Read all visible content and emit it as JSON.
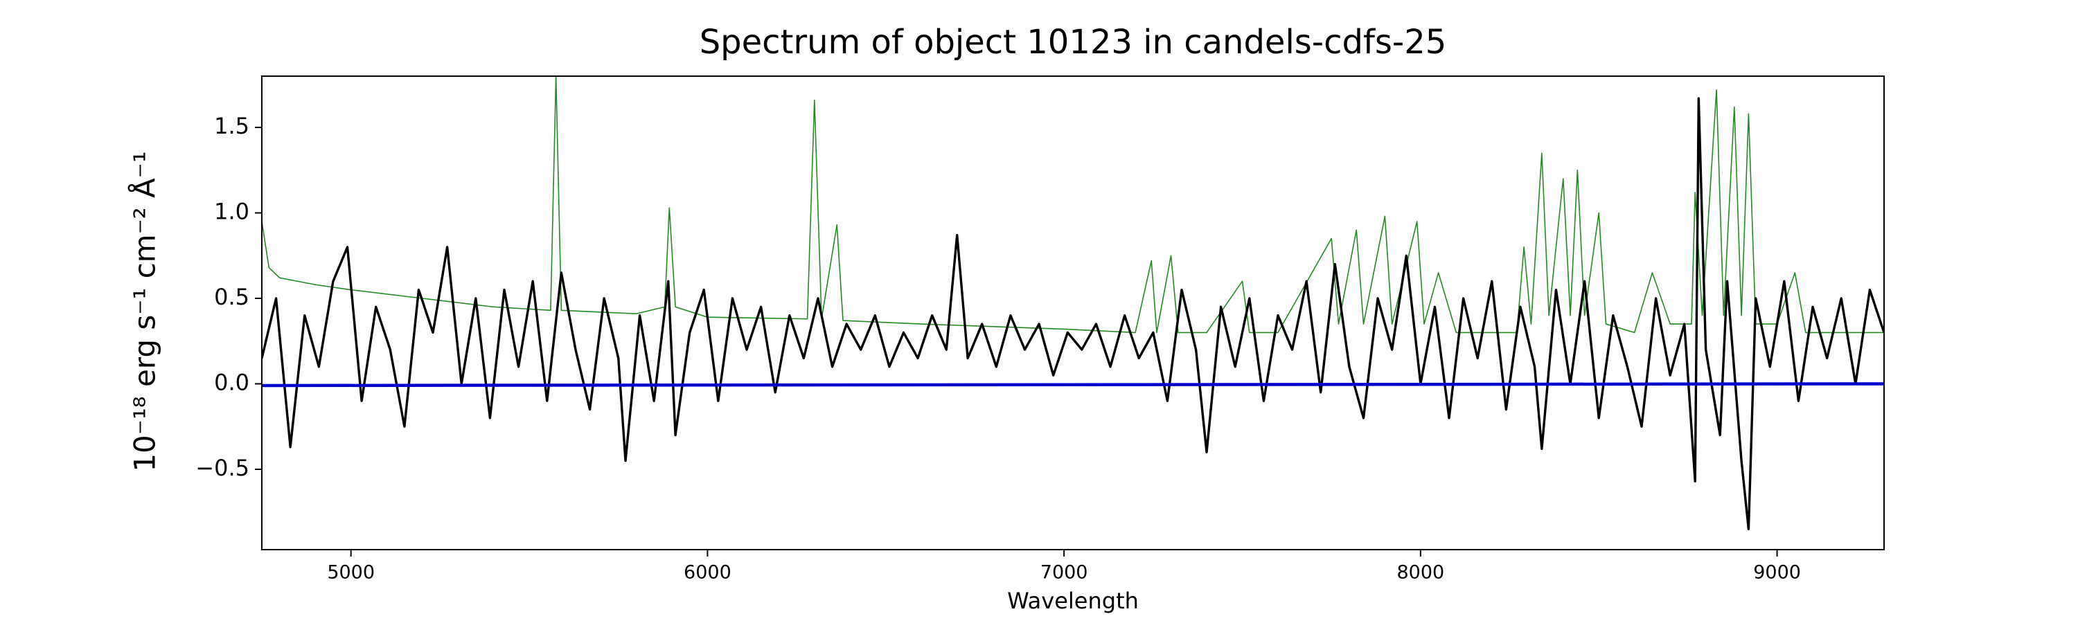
{
  "chart_data": {
    "type": "line",
    "title": "Spectrum of object 10123 in candels-cdfs-25",
    "xlabel": "Wavelength",
    "ylabel": "10⁻¹⁸ erg s⁻¹ cm⁻² Å⁻¹",
    "xlim": [
      4750,
      9300
    ],
    "ylim": [
      -0.97,
      1.8
    ],
    "xticks": [
      5000,
      6000,
      7000,
      8000,
      9000
    ],
    "yticks": [
      {
        "value": -0.5,
        "label": "−0.5"
      },
      {
        "value": 0,
        "label": "0.0"
      },
      {
        "value": 0.5,
        "label": "0.5"
      },
      {
        "value": 1,
        "label": "1.0"
      },
      {
        "value": 1.5,
        "label": "1.5"
      }
    ],
    "series": [
      {
        "color": "#228b22",
        "width": 1.6,
        "x": [
          4750,
          4770,
          4800,
          4900,
          5000,
          5200,
          5400,
          5560,
          5575,
          5590,
          5800,
          5880,
          5893,
          5910,
          6000,
          6280,
          6300,
          6320,
          6363,
          6380,
          6600,
          7000,
          7200,
          7245,
          7260,
          7300,
          7320,
          7400,
          7500,
          7520,
          7600,
          7750,
          7770,
          7820,
          7840,
          7900,
          7920,
          7990,
          8010,
          8050,
          8100,
          8270,
          8290,
          8310,
          8340,
          8360,
          8400,
          8420,
          8440,
          8460,
          8500,
          8520,
          8600,
          8650,
          8700,
          8760,
          8770,
          8790,
          8830,
          8850,
          8880,
          8900,
          8920,
          8940,
          9000,
          9050,
          9080,
          9300
        ],
        "values": [
          0.95,
          0.68,
          0.62,
          0.58,
          0.55,
          0.5,
          0.45,
          0.43,
          1.8,
          0.43,
          0.41,
          0.45,
          1.03,
          0.45,
          0.39,
          0.38,
          1.66,
          0.38,
          0.93,
          0.37,
          0.35,
          0.32,
          0.3,
          0.72,
          0.3,
          0.75,
          0.3,
          0.3,
          0.6,
          0.3,
          0.3,
          0.85,
          0.35,
          0.9,
          0.35,
          0.98,
          0.35,
          0.95,
          0.35,
          0.65,
          0.3,
          0.3,
          0.8,
          0.35,
          1.35,
          0.4,
          1.2,
          0.4,
          1.25,
          0.4,
          1.0,
          0.35,
          0.3,
          0.65,
          0.35,
          0.35,
          1.12,
          0.4,
          1.72,
          0.4,
          1.62,
          0.4,
          1.58,
          0.35,
          0.35,
          0.65,
          0.3,
          0.3
        ]
      },
      {
        "color": "#000000",
        "width": 3.4,
        "x": [
          4750,
          4790,
          4830,
          4870,
          4910,
          4950,
          4990,
          5030,
          5070,
          5110,
          5150,
          5190,
          5230,
          5270,
          5310,
          5350,
          5390,
          5430,
          5470,
          5510,
          5550,
          5590,
          5630,
          5670,
          5710,
          5750,
          5770,
          5810,
          5850,
          5890,
          5910,
          5950,
          5990,
          6030,
          6070,
          6110,
          6150,
          6190,
          6230,
          6270,
          6310,
          6350,
          6390,
          6430,
          6470,
          6510,
          6550,
          6590,
          6630,
          6670,
          6700,
          6730,
          6770,
          6810,
          6850,
          6890,
          6930,
          6970,
          7010,
          7050,
          7090,
          7130,
          7170,
          7210,
          7250,
          7290,
          7330,
          7370,
          7400,
          7440,
          7480,
          7520,
          7560,
          7600,
          7640,
          7680,
          7720,
          7760,
          7800,
          7840,
          7880,
          7920,
          7960,
          8000,
          8040,
          8080,
          8120,
          8160,
          8200,
          8240,
          8280,
          8320,
          8340,
          8380,
          8420,
          8460,
          8500,
          8540,
          8580,
          8620,
          8660,
          8700,
          8740,
          8770,
          8780,
          8800,
          8840,
          8860,
          8900,
          8920,
          8940,
          8980,
          9020,
          9060,
          9100,
          9140,
          9180,
          9220,
          9260,
          9300
        ],
        "values": [
          0.15,
          0.5,
          -0.37,
          0.4,
          0.1,
          0.6,
          0.8,
          -0.1,
          0.45,
          0.2,
          -0.25,
          0.55,
          0.3,
          0.8,
          0.0,
          0.5,
          -0.2,
          0.55,
          0.1,
          0.6,
          -0.1,
          0.65,
          0.2,
          -0.15,
          0.5,
          0.15,
          -0.45,
          0.4,
          -0.1,
          0.6,
          -0.3,
          0.3,
          0.55,
          -0.1,
          0.5,
          0.2,
          0.45,
          -0.05,
          0.4,
          0.15,
          0.5,
          0.1,
          0.35,
          0.2,
          0.4,
          0.1,
          0.3,
          0.15,
          0.4,
          0.2,
          0.87,
          0.15,
          0.35,
          0.1,
          0.4,
          0.2,
          0.35,
          0.05,
          0.3,
          0.2,
          0.35,
          0.1,
          0.4,
          0.15,
          0.3,
          -0.1,
          0.55,
          0.2,
          -0.4,
          0.45,
          0.1,
          0.5,
          -0.1,
          0.4,
          0.2,
          0.6,
          -0.05,
          0.7,
          0.1,
          -0.2,
          0.5,
          0.2,
          0.75,
          0.0,
          0.45,
          -0.2,
          0.5,
          0.15,
          0.6,
          -0.15,
          0.45,
          0.1,
          -0.38,
          0.55,
          0.0,
          0.6,
          -0.2,
          0.4,
          0.1,
          -0.25,
          0.5,
          0.05,
          0.35,
          -0.57,
          1.67,
          0.2,
          -0.3,
          0.6,
          -0.45,
          -0.85,
          0.5,
          0.1,
          0.6,
          -0.1,
          0.45,
          0.15,
          0.5,
          0.0,
          0.55,
          0.3
        ]
      },
      {
        "color": "#0000cc",
        "width": 4.5,
        "x": [
          4750,
          9300
        ],
        "values": [
          -0.01,
          0.0
        ]
      }
    ]
  }
}
